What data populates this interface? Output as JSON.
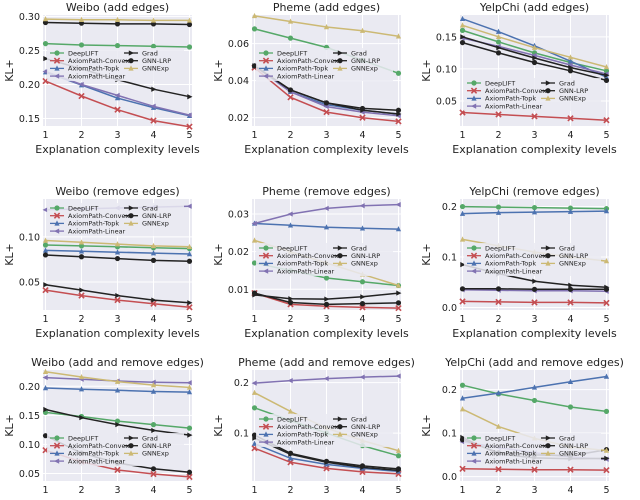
{
  "chart_data": [
    {
      "type": "line",
      "title": "Weibo (add edges)",
      "xlabel": "Explanation complexity levels",
      "ylabel": "KL+",
      "x": [
        1,
        2,
        3,
        4,
        5
      ],
      "ylim": [
        0.139,
        0.302
      ],
      "yticks": [
        "0.15",
        "0.20",
        "0.25",
        "0.30"
      ],
      "ytick_values": [
        0.15,
        0.2,
        0.25,
        0.3
      ],
      "legend": "left",
      "series": [
        {
          "name": "DeepLIFT",
          "values": [
            0.26,
            0.258,
            0.257,
            0.256,
            0.255
          ]
        },
        {
          "name": "AxiomPath-Convex",
          "values": [
            0.205,
            0.183,
            0.163,
            0.147,
            0.138
          ]
        },
        {
          "name": "AxiomPath-Topk",
          "values": [
            0.218,
            0.199,
            0.18,
            0.166,
            0.154
          ]
        },
        {
          "name": "AxiomPath-Linear",
          "values": [
            0.219,
            0.2,
            0.184,
            0.168,
            0.155
          ]
        },
        {
          "name": "Grad",
          "values": [
            0.238,
            0.223,
            0.207,
            0.193,
            0.182
          ]
        },
        {
          "name": "GNN-LRP",
          "values": [
            0.291,
            0.29,
            0.289,
            0.289,
            0.288
          ]
        },
        {
          "name": "GNNExp",
          "values": [
            0.296,
            0.295,
            0.295,
            0.294,
            0.294
          ]
        }
      ]
    },
    {
      "type": "line",
      "title": "Pheme (add edges)",
      "xlabel": "Explanation complexity levels",
      "ylabel": "KL+",
      "x": [
        1,
        2,
        3,
        4,
        5
      ],
      "ylim": [
        0.0155,
        0.0755
      ],
      "yticks": [
        "0.02",
        "0.04",
        "0.06"
      ],
      "ytick_values": [
        0.02,
        0.04,
        0.06
      ],
      "legend": "upper-left",
      "series": [
        {
          "name": "DeepLIFT",
          "values": [
            0.068,
            0.063,
            0.058,
            0.051,
            0.044
          ]
        },
        {
          "name": "AxiomPath-Convex",
          "values": [
            0.047,
            0.031,
            0.023,
            0.02,
            0.018
          ]
        },
        {
          "name": "AxiomPath-Topk",
          "values": [
            0.048,
            0.034,
            0.027,
            0.024,
            0.022
          ]
        },
        {
          "name": "AxiomPath-Linear",
          "values": [
            0.048,
            0.034,
            0.026,
            0.023,
            0.021
          ]
        },
        {
          "name": "Grad",
          "values": [
            0.048,
            0.035,
            0.028,
            0.024,
            0.022
          ]
        },
        {
          "name": "GNN-LRP",
          "values": [
            0.048,
            0.035,
            0.028,
            0.025,
            0.024
          ]
        },
        {
          "name": "GNNExp",
          "values": [
            0.075,
            0.072,
            0.069,
            0.067,
            0.064
          ]
        }
      ]
    },
    {
      "type": "line",
      "title": "YelpChi (add edges)",
      "xlabel": "Explanation complexity levels",
      "ylabel": "KL+",
      "x": [
        1,
        2,
        3,
        4,
        5
      ],
      "ylim": [
        0.011,
        0.184
      ],
      "yticks": [
        "0.05",
        "0.10",
        "0.15"
      ],
      "ytick_values": [
        0.05,
        0.1,
        0.15
      ],
      "legend": "bottom-left",
      "series": [
        {
          "name": "DeepLIFT",
          "values": [
            0.16,
            0.142,
            0.125,
            0.11,
            0.097
          ]
        },
        {
          "name": "AxiomPath-Convex",
          "values": [
            0.032,
            0.029,
            0.026,
            0.023,
            0.02
          ]
        },
        {
          "name": "AxiomPath-Topk",
          "values": [
            0.178,
            0.158,
            0.136,
            0.112,
            0.087
          ]
        },
        {
          "name": "AxiomPath-Linear",
          "values": [
            0.148,
            0.135,
            0.121,
            0.106,
            0.092
          ]
        },
        {
          "name": "Grad",
          "values": [
            0.15,
            0.133,
            0.117,
            0.102,
            0.09
          ]
        },
        {
          "name": "GNN-LRP",
          "values": [
            0.141,
            0.125,
            0.11,
            0.097,
            0.082
          ]
        },
        {
          "name": "GNNExp",
          "values": [
            0.168,
            0.15,
            0.133,
            0.118,
            0.103
          ]
        }
      ]
    },
    {
      "type": "line",
      "title": "Weibo (remove edges)",
      "xlabel": "Explanation complexity levels",
      "ylabel": "KL+",
      "x": [
        1,
        2,
        3,
        4,
        5
      ],
      "ylim": [
        0.019,
        0.142
      ],
      "yticks": [
        "0.05",
        "0.10"
      ],
      "ytick_values": [
        0.05,
        0.1
      ],
      "legend": "top-left",
      "series": [
        {
          "name": "DeepLIFT",
          "values": [
            0.091,
            0.09,
            0.089,
            0.088,
            0.087
          ]
        },
        {
          "name": "AxiomPath-Convex",
          "values": [
            0.041,
            0.035,
            0.03,
            0.026,
            0.022
          ]
        },
        {
          "name": "AxiomPath-Topk",
          "values": [
            0.085,
            0.084,
            0.083,
            0.082,
            0.081
          ]
        },
        {
          "name": "AxiomPath-Linear",
          "values": [
            0.13,
            0.131,
            0.132,
            0.133,
            0.134
          ]
        },
        {
          "name": "Grad",
          "values": [
            0.047,
            0.041,
            0.035,
            0.03,
            0.027
          ]
        },
        {
          "name": "GNN-LRP",
          "values": [
            0.08,
            0.078,
            0.076,
            0.074,
            0.073
          ]
        },
        {
          "name": "GNNExp",
          "values": [
            0.096,
            0.094,
            0.092,
            0.09,
            0.089
          ]
        }
      ]
    },
    {
      "type": "line",
      "title": "Pheme (remove edges)",
      "xlabel": "Explanation complexity levels",
      "ylabel": "KL+",
      "x": [
        1,
        2,
        3,
        4,
        5
      ],
      "ylim": [
        0.0045,
        0.034
      ],
      "yticks": [
        "0.01",
        "0.02",
        "0.03"
      ],
      "ytick_values": [
        0.01,
        0.02,
        0.03
      ],
      "legend": "center-left",
      "series": [
        {
          "name": "DeepLIFT",
          "values": [
            0.017,
            0.015,
            0.013,
            0.012,
            0.011
          ]
        },
        {
          "name": "AxiomPath-Convex",
          "values": [
            0.009,
            0.006,
            0.0055,
            0.0052,
            0.005
          ]
        },
        {
          "name": "AxiomPath-Topk",
          "values": [
            0.0275,
            0.027,
            0.0265,
            0.0262,
            0.026
          ]
        },
        {
          "name": "AxiomPath-Linear",
          "values": [
            0.0275,
            0.03,
            0.0315,
            0.0322,
            0.0325
          ]
        },
        {
          "name": "Grad",
          "values": [
            0.0085,
            0.0075,
            0.0074,
            0.008,
            0.009
          ]
        },
        {
          "name": "GNN-LRP",
          "values": [
            0.009,
            0.0065,
            0.006,
            0.0062,
            0.0064
          ]
        },
        {
          "name": "GNNExp",
          "values": [
            0.023,
            0.02,
            0.017,
            0.014,
            0.011
          ]
        }
      ]
    },
    {
      "type": "line",
      "title": "YelpChi (remove edges)",
      "xlabel": "Explanation complexity levels",
      "ylabel": "KL+",
      "x": [
        1,
        2,
        3,
        4,
        5
      ],
      "ylim": [
        -0.005,
        0.215
      ],
      "yticks": [
        "0.0",
        "0.1",
        "0.2"
      ],
      "ytick_values": [
        0.0,
        0.1,
        0.2
      ],
      "legend": "center-left",
      "series": [
        {
          "name": "DeepLIFT",
          "values": [
            0.2,
            0.199,
            0.198,
            0.197,
            0.196
          ]
        },
        {
          "name": "AxiomPath-Convex",
          "values": [
            0.012,
            0.011,
            0.01,
            0.01,
            0.009
          ]
        },
        {
          "name": "AxiomPath-Topk",
          "values": [
            0.186,
            0.188,
            0.189,
            0.19,
            0.191
          ]
        },
        {
          "name": "AxiomPath-Linear",
          "values": [
            0.035,
            0.034,
            0.033,
            0.033,
            0.032
          ]
        },
        {
          "name": "Grad",
          "values": [
            0.085,
            0.067,
            0.052,
            0.044,
            0.04
          ]
        },
        {
          "name": "GNN-LRP",
          "values": [
            0.037,
            0.037,
            0.036,
            0.036,
            0.036
          ]
        },
        {
          "name": "GNNExp",
          "values": [
            0.135,
            0.122,
            0.11,
            0.1,
            0.092
          ]
        }
      ]
    },
    {
      "type": "line",
      "title": "Weibo (add and remove edges)",
      "xlabel": "Explanation complexity levels",
      "ylabel": "KL+",
      "x": [
        1,
        2,
        3,
        4,
        5
      ],
      "ylim": [
        0.037,
        0.228
      ],
      "yticks": [
        "0.05",
        "0.10",
        "0.15",
        "0.20"
      ],
      "ytick_values": [
        0.05,
        0.1,
        0.15,
        0.2
      ],
      "legend": "bottom-left",
      "series": [
        {
          "name": "DeepLIFT",
          "values": [
            0.155,
            0.148,
            0.14,
            0.134,
            0.128
          ]
        },
        {
          "name": "AxiomPath-Convex",
          "values": [
            0.09,
            0.07,
            0.056,
            0.049,
            0.044
          ]
        },
        {
          "name": "AxiomPath-Topk",
          "values": [
            0.197,
            0.195,
            0.193,
            0.191,
            0.19
          ]
        },
        {
          "name": "AxiomPath-Linear",
          "values": [
            0.215,
            0.212,
            0.209,
            0.207,
            0.206
          ]
        },
        {
          "name": "Grad",
          "values": [
            0.16,
            0.146,
            0.134,
            0.124,
            0.116
          ]
        },
        {
          "name": "GNN-LRP",
          "values": [
            0.115,
            0.085,
            0.068,
            0.058,
            0.052
          ]
        },
        {
          "name": "GNNExp",
          "values": [
            0.225,
            0.216,
            0.208,
            0.202,
            0.198
          ]
        }
      ]
    },
    {
      "type": "line",
      "title": "Pheme (add and remove edges)",
      "xlabel": "Explanation complexity levels",
      "ylabel": "KL+",
      "x": [
        1,
        2,
        3,
        4,
        5
      ],
      "ylim": [
        0.005,
        0.225
      ],
      "yticks": [
        "0.1",
        "0.2"
      ],
      "ytick_values": [
        0.1,
        0.2
      ],
      "legend": "center-left",
      "series": [
        {
          "name": "DeepLIFT",
          "values": [
            0.15,
            0.125,
            0.1,
            0.075,
            0.055
          ]
        },
        {
          "name": "AxiomPath-Convex",
          "values": [
            0.07,
            0.042,
            0.03,
            0.023,
            0.019
          ]
        },
        {
          "name": "AxiomPath-Topk",
          "values": [
            0.079,
            0.05,
            0.038,
            0.03,
            0.024
          ]
        },
        {
          "name": "AxiomPath-Linear",
          "values": [
            0.199,
            0.204,
            0.208,
            0.211,
            0.213
          ]
        },
        {
          "name": "Grad",
          "values": [
            0.09,
            0.058,
            0.042,
            0.032,
            0.026
          ]
        },
        {
          "name": "GNN-LRP",
          "values": [
            0.096,
            0.06,
            0.044,
            0.035,
            0.029
          ]
        },
        {
          "name": "GNNExp",
          "values": [
            0.18,
            0.143,
            0.11,
            0.085,
            0.065
          ]
        }
      ]
    },
    {
      "type": "line",
      "title": "YelpChi (add and remove edges)",
      "xlabel": "Explanation complexity levels",
      "ylabel": "KL+",
      "x": [
        1,
        2,
        3,
        4,
        5
      ],
      "ylim": [
        -0.01,
        0.245
      ],
      "yticks": [
        "0.0",
        "0.1",
        "0.2"
      ],
      "ytick_values": [
        0.0,
        0.1,
        0.2
      ],
      "legend": "bottom-left",
      "series": [
        {
          "name": "DeepLIFT",
          "values": [
            0.21,
            0.19,
            0.175,
            0.16,
            0.15
          ]
        },
        {
          "name": "AxiomPath-Convex",
          "values": [
            0.018,
            0.017,
            0.016,
            0.016,
            0.015
          ]
        },
        {
          "name": "AxiomPath-Topk",
          "values": [
            0.18,
            0.192,
            0.205,
            0.218,
            0.23
          ]
        },
        {
          "name": "AxiomPath-Linear",
          "values": [
            0.08,
            0.067,
            0.055,
            0.045,
            0.04
          ]
        },
        {
          "name": "Grad",
          "values": [
            0.09,
            0.052,
            0.043,
            0.041,
            0.042
          ]
        },
        {
          "name": "GNN-LRP",
          "values": [
            0.085,
            0.055,
            0.05,
            0.048,
            0.062
          ]
        },
        {
          "name": "GNNExp",
          "values": [
            0.155,
            0.115,
            0.088,
            0.068,
            0.06
          ]
        }
      ]
    }
  ],
  "series_style": [
    {
      "name": "DeepLIFT",
      "color": "#55a868",
      "marker": "circle"
    },
    {
      "name": "AxiomPath-Convex",
      "color": "#c44e52",
      "marker": "cross"
    },
    {
      "name": "AxiomPath-Topk",
      "color": "#4c72b0",
      "marker": "triangle-up"
    },
    {
      "name": "AxiomPath-Linear",
      "color": "#8172b2",
      "marker": "triangle-left"
    },
    {
      "name": "Grad",
      "color": "#222222",
      "marker": "triangle-right"
    },
    {
      "name": "GNN-LRP",
      "color": "#222222",
      "marker": "circle"
    },
    {
      "name": "GNNExp",
      "color": "#ccb974",
      "marker": "triangle-up"
    }
  ]
}
